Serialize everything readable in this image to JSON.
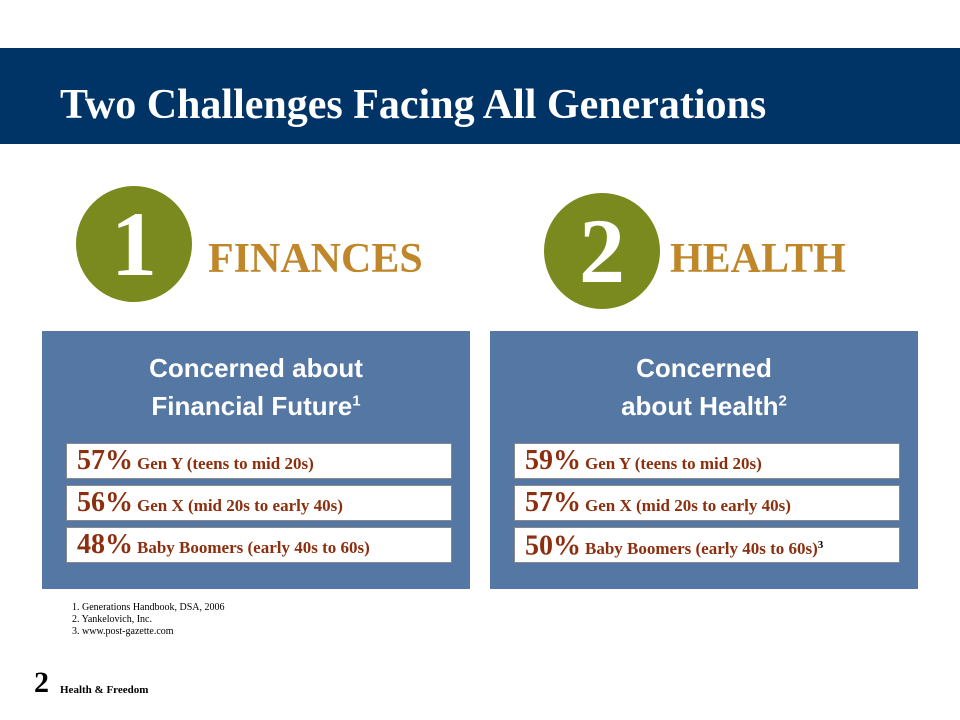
{
  "slide": {
    "title": "Two Challenges Facing All Generations"
  },
  "challenges": [
    {
      "number": "1",
      "heading": "FINANCES",
      "panel_title_line1": "Concerned about",
      "panel_title_line2": "Financial Future",
      "panel_title_sup": "1",
      "stats": [
        {
          "pct": "57%",
          "group": "Gen Y (teens to mid 20s)"
        },
        {
          "pct": "56%",
          "group": "Gen X (mid 20s to early 40s)"
        },
        {
          "pct": "48%",
          "group": "Baby Boomers (early 40s to 60s)"
        }
      ]
    },
    {
      "number": "2",
      "heading": "HEALTH",
      "panel_title_line1": "Concerned",
      "panel_title_line2": "about Health",
      "panel_title_sup": "2",
      "stats": [
        {
          "pct": "59%",
          "group": "Gen Y (teens to mid 20s)"
        },
        {
          "pct": "57%",
          "group": "Gen X (mid 20s to early 40s)"
        },
        {
          "pct": "50%",
          "group": "Baby Boomers (early 40s to 60s)",
          "sup": "3"
        }
      ]
    }
  ],
  "footnotes": [
    "1. Generations Handbook, DSA, 2006",
    "2. Yankelovich, Inc.",
    "3. www.post-gazette.com"
  ],
  "footer": {
    "page_number": "2",
    "label": "Health & Freedom"
  },
  "colors": {
    "title_bar": "#003366",
    "circle": "#7a8a1e",
    "heading": "#c0862a",
    "panel": "#5577a3",
    "stat_text": "#8b2f0f"
  }
}
